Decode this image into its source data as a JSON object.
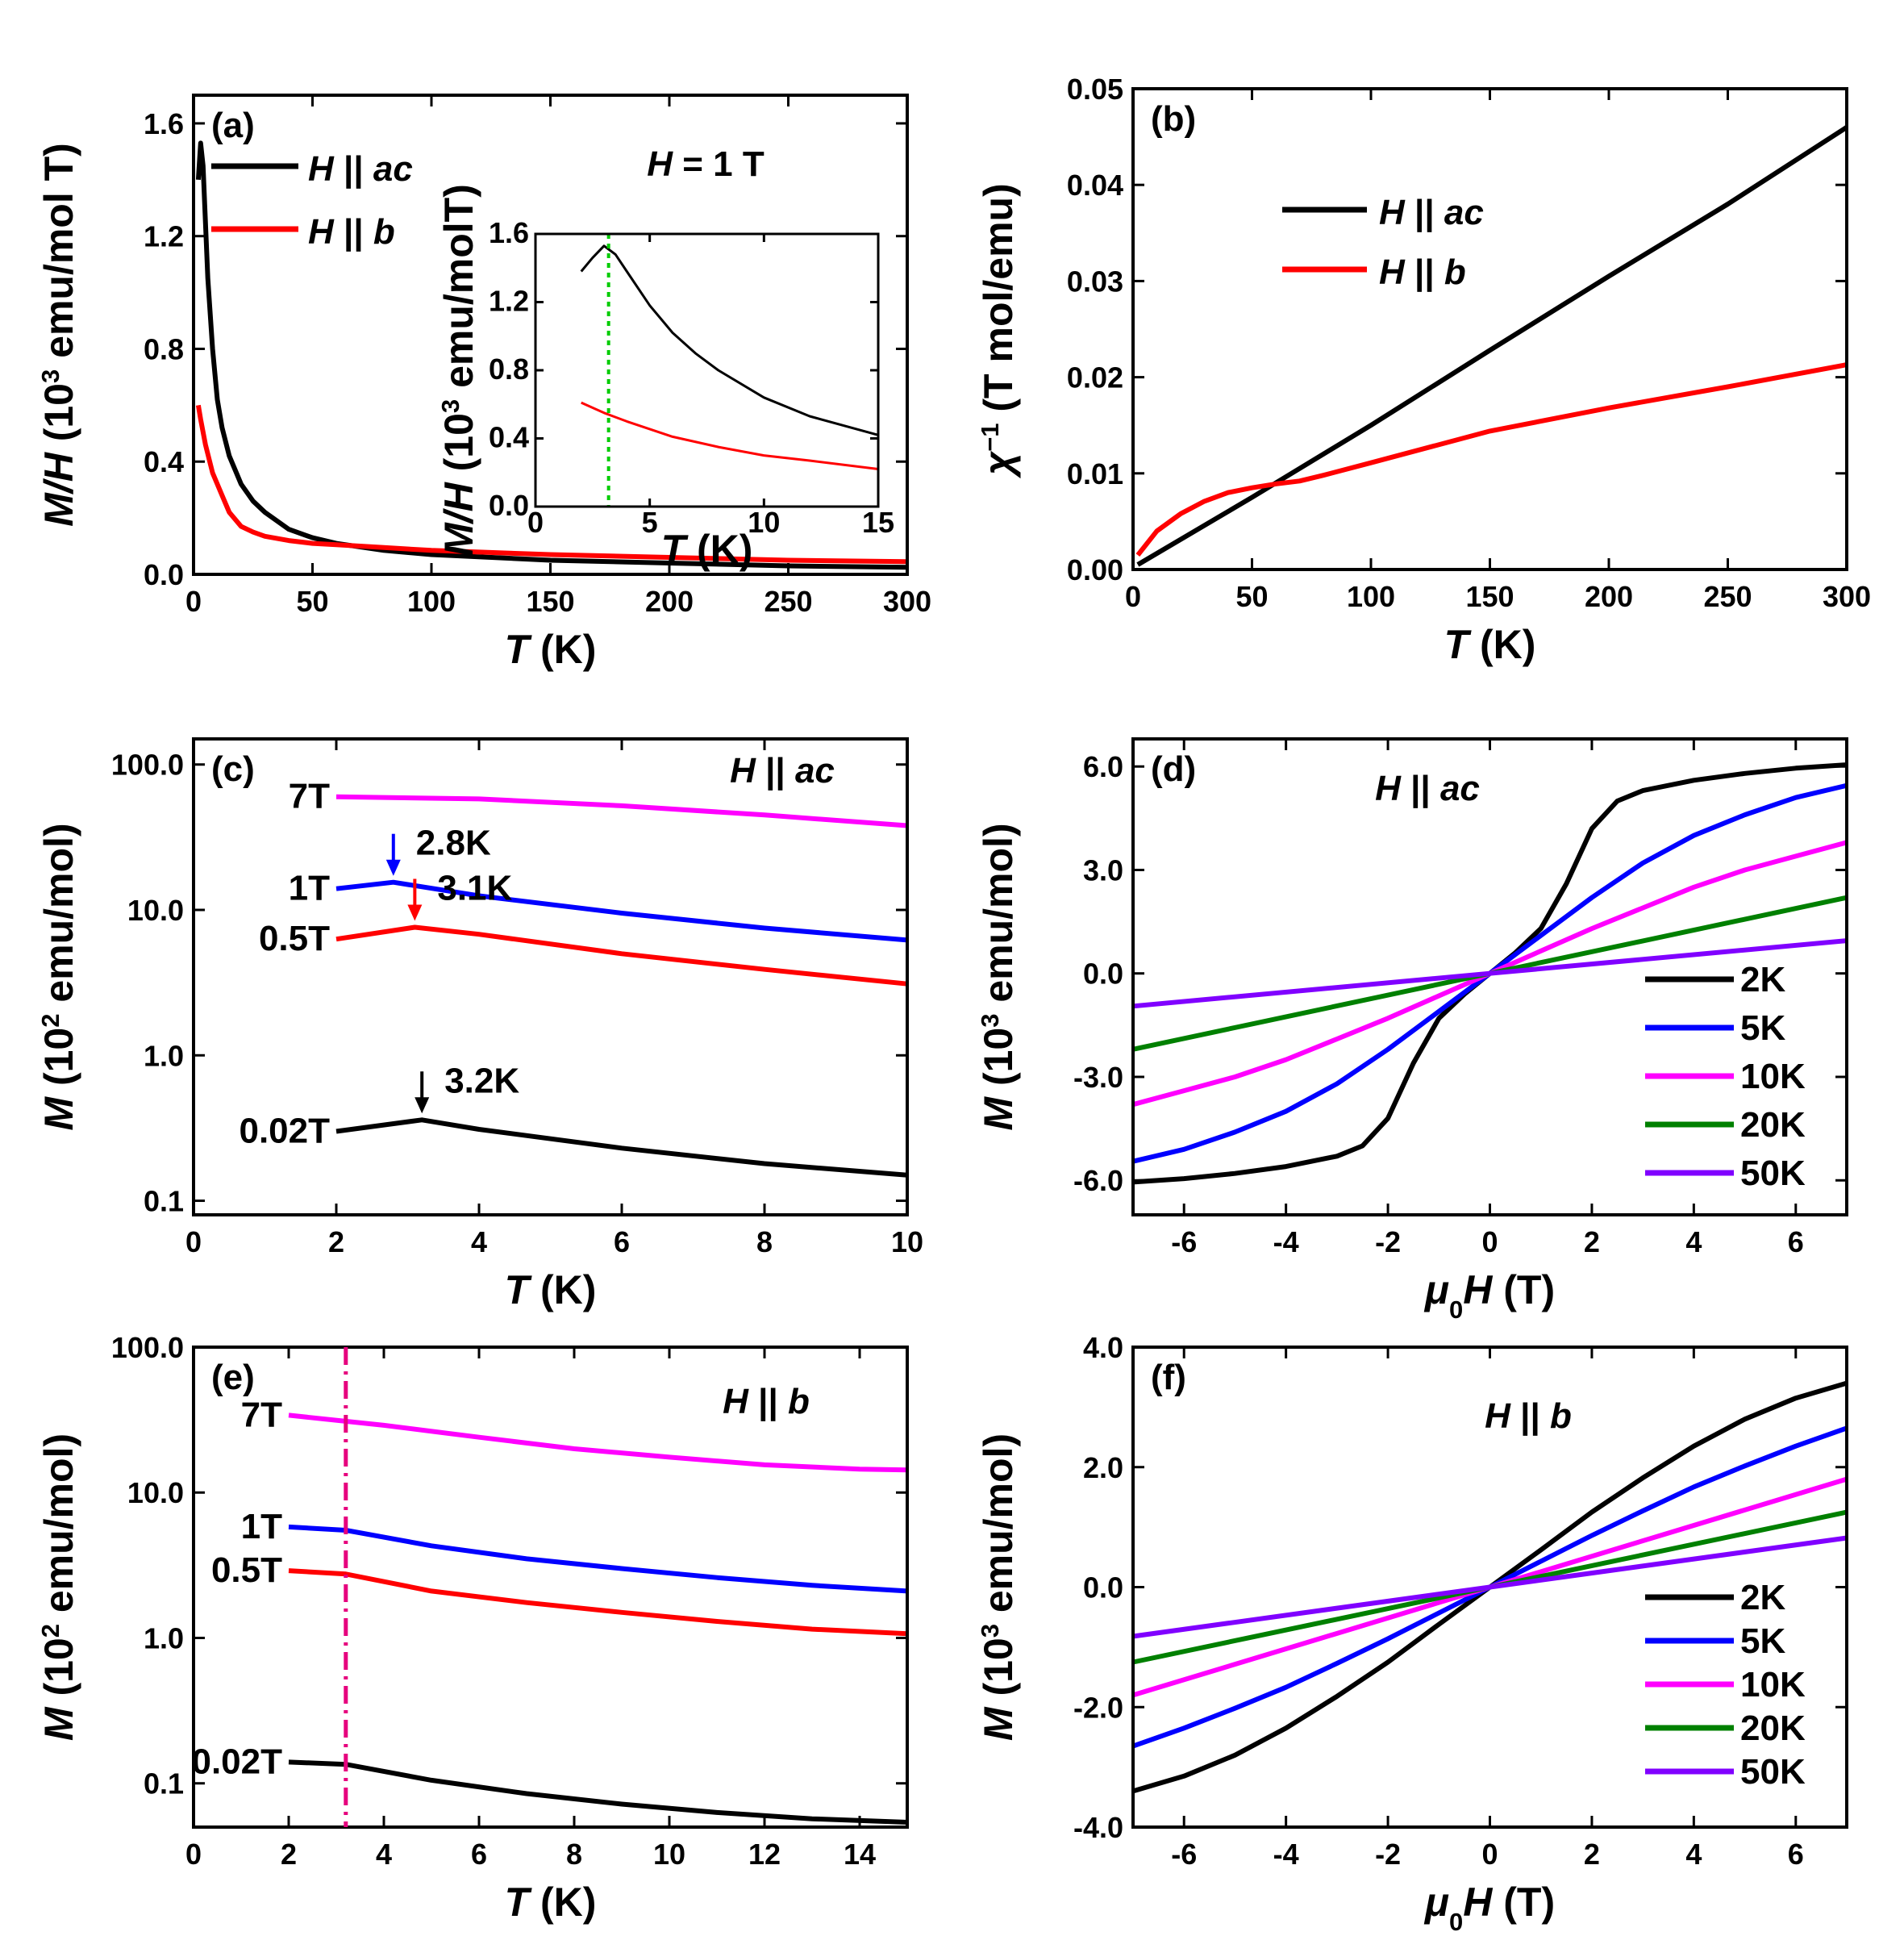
{
  "figure": "Magnetization panels (a)-(f)",
  "chart_data": [
    {
      "id": "a",
      "type": "line",
      "panel_label": "(a)",
      "annotation": "H = 1 T",
      "xlabel": "T (K)",
      "ylabel": "M/H (10^3 emu/mol T)",
      "xlim": [
        0,
        300
      ],
      "ylim": [
        0,
        1.7
      ],
      "xticks": [
        "0",
        "50",
        "100",
        "150",
        "200",
        "250",
        "300"
      ],
      "yticks": [
        "0.0",
        "0.4",
        "0.8",
        "1.2",
        "1.6"
      ],
      "legend": "top-left",
      "series": [
        {
          "name": "H || ac",
          "color": "#000000",
          "x": [
            2,
            3,
            4,
            6,
            8,
            10,
            12,
            15,
            20,
            25,
            30,
            40,
            50,
            60,
            80,
            100,
            150,
            200,
            250,
            300
          ],
          "y": [
            1.4,
            1.53,
            1.45,
            1.05,
            0.8,
            0.62,
            0.52,
            0.42,
            0.32,
            0.26,
            0.22,
            0.16,
            0.13,
            0.11,
            0.085,
            0.07,
            0.05,
            0.04,
            0.03,
            0.025
          ]
        },
        {
          "name": "H || b",
          "color": "#ff0000",
          "x": [
            2,
            3,
            5,
            8,
            10,
            12,
            15,
            20,
            25,
            30,
            40,
            50,
            60,
            80,
            100,
            150,
            200,
            250,
            300
          ],
          "y": [
            0.6,
            0.55,
            0.46,
            0.36,
            0.32,
            0.28,
            0.22,
            0.17,
            0.15,
            0.135,
            0.12,
            0.11,
            0.105,
            0.095,
            0.085,
            0.07,
            0.06,
            0.05,
            0.045
          ]
        }
      ],
      "inset": {
        "xlabel": "T (K)",
        "ylabel": "M/H (10^3 emu/molT)",
        "xlim": [
          0,
          15
        ],
        "ylim": [
          0,
          1.6
        ],
        "xticks": [
          "0",
          "5",
          "10",
          "15"
        ],
        "yticks": [
          "0.0",
          "0.4",
          "0.8",
          "1.2",
          "1.6"
        ],
        "marker_line": {
          "x": 3.2,
          "color": "#00cc00"
        },
        "series": [
          {
            "name": "H || ac",
            "color": "#000000",
            "x": [
              2,
              2.5,
              3,
              3.5,
              4,
              5,
              6,
              7,
              8,
              10,
              12,
              15
            ],
            "y": [
              1.38,
              1.46,
              1.53,
              1.48,
              1.38,
              1.18,
              1.02,
              0.9,
              0.8,
              0.64,
              0.53,
              0.42
            ]
          },
          {
            "name": "H || b",
            "color": "#ff0000",
            "x": [
              2,
              3,
              4,
              6,
              8,
              10,
              12,
              15
            ],
            "y": [
              0.61,
              0.55,
              0.5,
              0.41,
              0.35,
              0.3,
              0.27,
              0.22
            ]
          }
        ]
      }
    },
    {
      "id": "b",
      "type": "line",
      "panel_label": "(b)",
      "xlabel": "T (K)",
      "ylabel": "χ^-1 (T mol/emu)",
      "xlim": [
        0,
        300
      ],
      "ylim": [
        0,
        0.05
      ],
      "xticks": [
        "0",
        "50",
        "100",
        "150",
        "200",
        "250",
        "300"
      ],
      "yticks": [
        "0.00",
        "0.01",
        "0.02",
        "0.03",
        "0.04",
        "0.05"
      ],
      "legend": "top-left",
      "series": [
        {
          "name": "H || ac",
          "color": "#000000",
          "x": [
            2,
            50,
            100,
            150,
            200,
            250,
            300
          ],
          "y": [
            0.0005,
            0.0075,
            0.015,
            0.0228,
            0.0305,
            0.038,
            0.046
          ]
        },
        {
          "name": "H || b",
          "color": "#ff0000",
          "x": [
            2,
            10,
            20,
            30,
            40,
            50,
            60,
            70,
            80,
            100,
            150,
            200,
            250,
            300
          ],
          "y": [
            0.0015,
            0.004,
            0.0058,
            0.0071,
            0.008,
            0.0085,
            0.0089,
            0.0092,
            0.0098,
            0.0111,
            0.0144,
            0.0168,
            0.019,
            0.0213
          ]
        }
      ]
    },
    {
      "id": "c",
      "type": "line",
      "panel_label": "(c)",
      "annotation": "H || ac",
      "yscale": "log",
      "xlabel": "T (K)",
      "ylabel": "M (10^2 emu/mol)",
      "xlim": [
        0,
        10
      ],
      "ylim": [
        0.08,
        150
      ],
      "xticks": [
        "0",
        "2",
        "4",
        "6",
        "8",
        "10"
      ],
      "yticks": [
        {
          "v": 0.1,
          "label": "0.1"
        },
        {
          "v": 1,
          "label": "1.0"
        },
        {
          "v": 10,
          "label": "10.0"
        },
        {
          "v": 100,
          "label": "100.0"
        }
      ],
      "series": [
        {
          "name": "7T",
          "color": "#ff00ff",
          "x": [
            2,
            4,
            6,
            8,
            10
          ],
          "y": [
            60,
            58,
            52,
            45,
            38
          ]
        },
        {
          "name": "1T",
          "color": "#0000ff",
          "x": [
            2,
            2.8,
            4,
            6,
            8,
            10
          ],
          "y": [
            14,
            15.5,
            12.5,
            9.5,
            7.5,
            6.2
          ]
        },
        {
          "name": "0.5T",
          "color": "#ff0000",
          "x": [
            2,
            3.1,
            4,
            6,
            8,
            10
          ],
          "y": [
            6.3,
            7.6,
            6.8,
            5,
            3.9,
            3.1
          ]
        },
        {
          "name": "0.02T",
          "color": "#000000",
          "x": [
            2,
            3.2,
            4,
            6,
            8,
            10
          ],
          "y": [
            0.3,
            0.36,
            0.31,
            0.23,
            0.18,
            0.15
          ]
        }
      ],
      "arrows": [
        {
          "x": 2.8,
          "y": 15.5,
          "label": "2.8K",
          "color": "#0000ff"
        },
        {
          "x": 3.1,
          "y": 7.6,
          "label": "3.1K",
          "color": "#ff0000"
        },
        {
          "x": 3.2,
          "y": 0.36,
          "label": "3.2K",
          "color": "#000000"
        }
      ]
    },
    {
      "id": "d",
      "type": "line",
      "panel_label": "(d)",
      "annotation": "H || ac",
      "xlabel": "μ0H (T)",
      "ylabel": "M (10^3 emu/mol)",
      "xlim": [
        -7,
        7
      ],
      "ylim": [
        -7,
        6.8
      ],
      "xticks": [
        "-6",
        "-4",
        "-2",
        "0",
        "2",
        "4",
        "6"
      ],
      "yticks": [
        "-6.0",
        "-3.0",
        "0.0",
        "3.0",
        "6.0"
      ],
      "legend": "bottom-right",
      "series": [
        {
          "name": "2K",
          "color": "#000000",
          "x": [
            0,
            0.5,
            1.0,
            1.5,
            2.0,
            2.5,
            3.0,
            4.0,
            5.0,
            6.0,
            7.0
          ],
          "y": [
            0,
            0.6,
            1.3,
            2.6,
            4.2,
            5.0,
            5.3,
            5.6,
            5.8,
            5.95,
            6.05
          ]
        },
        {
          "name": "5K",
          "color": "#0000ff",
          "x": [
            0,
            1,
            2,
            3,
            4,
            5,
            6,
            7
          ],
          "y": [
            0,
            1.1,
            2.2,
            3.2,
            4.0,
            4.6,
            5.1,
            5.45
          ]
        },
        {
          "name": "10K",
          "color": "#ff00ff",
          "x": [
            0,
            1,
            2,
            3,
            4,
            5,
            6,
            7
          ],
          "y": [
            0,
            0.65,
            1.3,
            1.9,
            2.5,
            3.0,
            3.4,
            3.8
          ]
        },
        {
          "name": "20K",
          "color": "#008000",
          "x": [
            0,
            7
          ],
          "y": [
            0,
            2.2
          ]
        },
        {
          "name": "50K",
          "color": "#8000ff",
          "x": [
            0,
            7
          ],
          "y": [
            0,
            0.95
          ]
        }
      ]
    },
    {
      "id": "e",
      "type": "line",
      "panel_label": "(e)",
      "annotation": "H || b",
      "yscale": "log",
      "xlabel": "T (K)",
      "ylabel": "M (10^2 emu/mol)",
      "xlim": [
        0,
        15
      ],
      "ylim": [
        0.05,
        100
      ],
      "xticks": [
        "0",
        "2",
        "4",
        "6",
        "8",
        "10",
        "12",
        "14"
      ],
      "yticks": [
        {
          "v": 0.1,
          "label": "0.1"
        },
        {
          "v": 1,
          "label": "1.0"
        },
        {
          "v": 10,
          "label": "10.0"
        },
        {
          "v": 100,
          "label": "100.0"
        }
      ],
      "marker_line": {
        "x": 3.2,
        "color": "#e6007e"
      },
      "series": [
        {
          "name": "7T",
          "color": "#ff00ff",
          "x": [
            2,
            4,
            6,
            8,
            10,
            12,
            14,
            15
          ],
          "y": [
            34,
            29,
            24,
            20,
            17.5,
            15.5,
            14.5,
            14.3
          ]
        },
        {
          "name": "1T",
          "color": "#0000ff",
          "x": [
            2,
            3.2,
            5,
            7,
            9,
            11,
            13,
            15
          ],
          "y": [
            5.8,
            5.5,
            4.3,
            3.5,
            3.0,
            2.6,
            2.3,
            2.1
          ]
        },
        {
          "name": "0.5T",
          "color": "#ff0000",
          "x": [
            2,
            3.2,
            5,
            7,
            9,
            11,
            13,
            15
          ],
          "y": [
            2.9,
            2.75,
            2.1,
            1.75,
            1.5,
            1.3,
            1.15,
            1.07
          ]
        },
        {
          "name": "0.02T",
          "color": "#000000",
          "x": [
            2,
            3.2,
            5,
            7,
            9,
            11,
            13,
            15
          ],
          "y": [
            0.14,
            0.135,
            0.105,
            0.085,
            0.072,
            0.063,
            0.057,
            0.054
          ]
        }
      ]
    },
    {
      "id": "f",
      "type": "line",
      "panel_label": "(f)",
      "annotation": "H || b",
      "xlabel": "μ0H  (T)",
      "ylabel": "M (10^3 emu/mol)",
      "xlim": [
        -7,
        7
      ],
      "ylim": [
        -4,
        4
      ],
      "xticks": [
        "-6",
        "-4",
        "-2",
        "0",
        "2",
        "4",
        "6"
      ],
      "yticks": [
        "-4.0",
        "-2.0",
        "0.0",
        "2.0",
        "4.0"
      ],
      "legend": "bottom-right",
      "series": [
        {
          "name": "2K",
          "color": "#000000",
          "x": [
            0,
            1,
            2,
            3,
            4,
            5,
            6,
            7
          ],
          "y": [
            0,
            0.62,
            1.25,
            1.82,
            2.35,
            2.8,
            3.15,
            3.4
          ]
        },
        {
          "name": "5K",
          "color": "#0000ff",
          "x": [
            0,
            1,
            2,
            3,
            4,
            5,
            6,
            7
          ],
          "y": [
            0,
            0.43,
            0.86,
            1.27,
            1.67,
            2.02,
            2.35,
            2.65
          ]
        },
        {
          "name": "10K",
          "color": "#ff00ff",
          "x": [
            0,
            7
          ],
          "y": [
            0,
            1.8
          ]
        },
        {
          "name": "20K",
          "color": "#008000",
          "x": [
            0,
            7
          ],
          "y": [
            0,
            1.25
          ]
        },
        {
          "name": "50K",
          "color": "#8000ff",
          "x": [
            0,
            7
          ],
          "y": [
            0,
            0.82
          ]
        }
      ]
    }
  ]
}
